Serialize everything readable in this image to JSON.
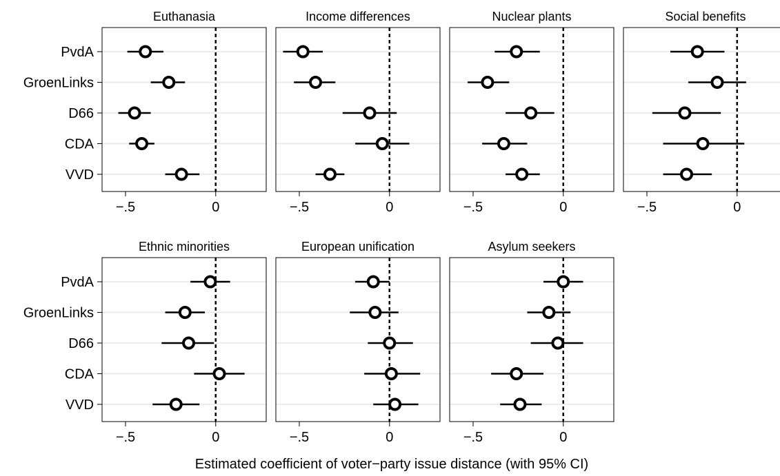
{
  "chart_data": {
    "type": "scatter",
    "xlabel": "Estimated coefficient of voter−party issue distance (with 95% CI)",
    "xlim": [
      -0.63,
      0.28
    ],
    "xticks": [
      -0.5,
      0
    ],
    "xtick_labels": [
      "−.5",
      "0"
    ],
    "reference_line": 0,
    "categories": [
      "PvdA",
      "GroenLinks",
      "D66",
      "CDA",
      "VVD"
    ],
    "grid": "horizontal",
    "panels": [
      {
        "title": "Euthanasia",
        "points": [
          {
            "party": "PvdA",
            "estimate": -0.39,
            "lower": -0.49,
            "upper": -0.29
          },
          {
            "party": "GroenLinks",
            "estimate": -0.26,
            "lower": -0.36,
            "upper": -0.17
          },
          {
            "party": "D66",
            "estimate": -0.45,
            "lower": -0.54,
            "upper": -0.36
          },
          {
            "party": "CDA",
            "estimate": -0.41,
            "lower": -0.48,
            "upper": -0.34
          },
          {
            "party": "VVD",
            "estimate": -0.19,
            "lower": -0.28,
            "upper": -0.09
          }
        ]
      },
      {
        "title": "Income differences",
        "points": [
          {
            "party": "PvdA",
            "estimate": -0.48,
            "lower": -0.59,
            "upper": -0.37
          },
          {
            "party": "GroenLinks",
            "estimate": -0.41,
            "lower": -0.53,
            "upper": -0.3
          },
          {
            "party": "D66",
            "estimate": -0.11,
            "lower": -0.26,
            "upper": 0.04
          },
          {
            "party": "CDA",
            "estimate": -0.04,
            "lower": -0.19,
            "upper": 0.11
          },
          {
            "party": "VVD",
            "estimate": -0.33,
            "lower": -0.41,
            "upper": -0.25
          }
        ]
      },
      {
        "title": "Nuclear plants",
        "points": [
          {
            "party": "PvdA",
            "estimate": -0.26,
            "lower": -0.38,
            "upper": -0.13
          },
          {
            "party": "GroenLinks",
            "estimate": -0.42,
            "lower": -0.53,
            "upper": -0.3
          },
          {
            "party": "D66",
            "estimate": -0.18,
            "lower": -0.32,
            "upper": -0.05
          },
          {
            "party": "CDA",
            "estimate": -0.33,
            "lower": -0.45,
            "upper": -0.2
          },
          {
            "party": "VVD",
            "estimate": -0.23,
            "lower": -0.32,
            "upper": -0.13
          }
        ]
      },
      {
        "title": "Social benefits",
        "points": [
          {
            "party": "PvdA",
            "estimate": -0.22,
            "lower": -0.37,
            "upper": -0.07
          },
          {
            "party": "GroenLinks",
            "estimate": -0.11,
            "lower": -0.27,
            "upper": 0.05
          },
          {
            "party": "D66",
            "estimate": -0.29,
            "lower": -0.47,
            "upper": -0.09
          },
          {
            "party": "CDA",
            "estimate": -0.19,
            "lower": -0.41,
            "upper": 0.04
          },
          {
            "party": "VVD",
            "estimate": -0.28,
            "lower": -0.41,
            "upper": -0.14
          }
        ]
      },
      {
        "title": "Ethnic minorities",
        "points": [
          {
            "party": "PvdA",
            "estimate": -0.03,
            "lower": -0.14,
            "upper": 0.08
          },
          {
            "party": "GroenLinks",
            "estimate": -0.17,
            "lower": -0.28,
            "upper": -0.06
          },
          {
            "party": "D66",
            "estimate": -0.15,
            "lower": -0.3,
            "upper": -0.01
          },
          {
            "party": "CDA",
            "estimate": 0.02,
            "lower": -0.12,
            "upper": 0.16
          },
          {
            "party": "VVD",
            "estimate": -0.22,
            "lower": -0.35,
            "upper": -0.09
          }
        ]
      },
      {
        "title": "European unification",
        "points": [
          {
            "party": "PvdA",
            "estimate": -0.09,
            "lower": -0.19,
            "upper": 0.0
          },
          {
            "party": "GroenLinks",
            "estimate": -0.08,
            "lower": -0.22,
            "upper": 0.05
          },
          {
            "party": "D66",
            "estimate": 0.0,
            "lower": -0.12,
            "upper": 0.13
          },
          {
            "party": "CDA",
            "estimate": 0.01,
            "lower": -0.14,
            "upper": 0.17
          },
          {
            "party": "VVD",
            "estimate": 0.03,
            "lower": -0.09,
            "upper": 0.16
          }
        ]
      },
      {
        "title": "Asylum seekers",
        "points": [
          {
            "party": "PvdA",
            "estimate": 0.0,
            "lower": -0.11,
            "upper": 0.11
          },
          {
            "party": "GroenLinks",
            "estimate": -0.08,
            "lower": -0.2,
            "upper": 0.04
          },
          {
            "party": "D66",
            "estimate": -0.03,
            "lower": -0.18,
            "upper": 0.11
          },
          {
            "party": "CDA",
            "estimate": -0.26,
            "lower": -0.4,
            "upper": -0.11
          },
          {
            "party": "VVD",
            "estimate": -0.24,
            "lower": -0.35,
            "upper": -0.12
          }
        ]
      }
    ]
  }
}
